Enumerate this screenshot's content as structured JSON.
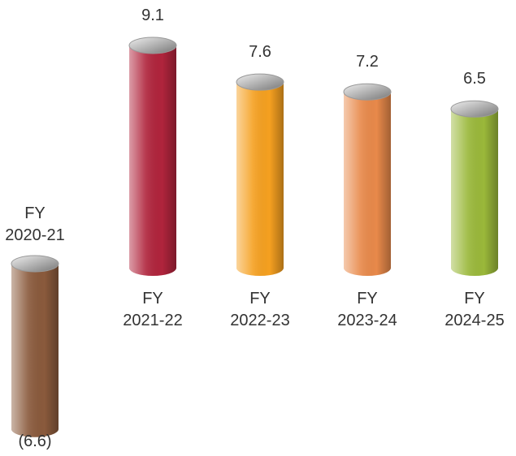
{
  "chart_data": {
    "type": "bar",
    "categories": [
      "FY\n2020-21",
      "FY\n2021-22",
      "FY\n2022-23",
      "FY\n2023-24",
      "FY\n2024-25"
    ],
    "values": [
      -6.6,
      9.1,
      7.6,
      7.2,
      6.5
    ],
    "value_labels": [
      "(6.6)",
      "9.1",
      "7.6",
      "7.2",
      "6.5"
    ],
    "colors": [
      "#8a5a3c",
      "#b0243c",
      "#f5a020",
      "#e8894a",
      "#9ab83a"
    ]
  }
}
